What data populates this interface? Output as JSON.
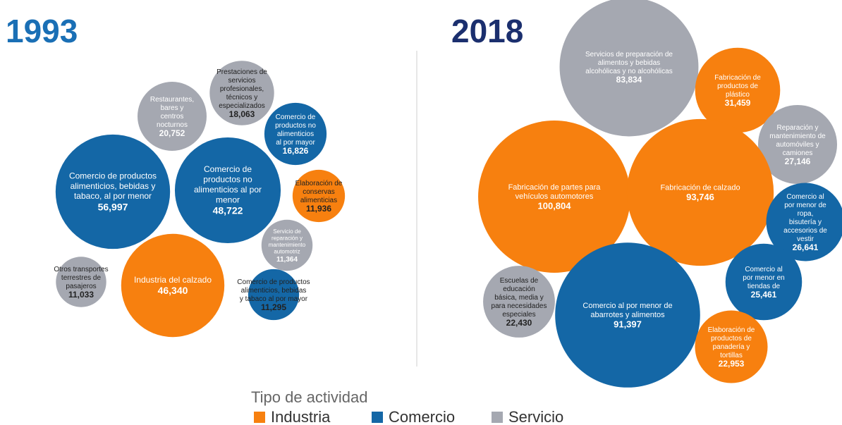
{
  "chart_data": [
    {
      "type": "packed_bubble",
      "title": "1993",
      "categories": [
        "Restaurantes, bares y centros nocturnos",
        "Prestaciones de servicios profesionales, técnicos y especializados",
        "Comercio de productos no alimenticios al por mayor",
        "Comercio de productos alimenticios, bebidas y tabaco, al por menor",
        "Comercio de productos no alimenticios al por menor",
        "Elaboración de conservas alimenticias",
        "Servicio de reparación y mantenimiento automotriz",
        "Otros transportes terrestres de pasajeros",
        "Industria del calzado",
        "Comercio de productos alimenticios, bebidas y tabaco al por mayor"
      ],
      "values": [
        20752,
        18063,
        16826,
        56997,
        48722,
        11936,
        11364,
        11033,
        46340,
        11295
      ],
      "value_labels": [
        "20,752",
        "18,063",
        "16,826",
        "56,997",
        "48,722",
        "11,936",
        "11,364",
        "11,033",
        "46,340",
        "11,295"
      ],
      "groups": [
        "Servicio",
        "Servicio",
        "Comercio",
        "Comercio",
        "Comercio",
        "Industria",
        "Servicio",
        "Servicio",
        "Industria",
        "Comercio"
      ]
    },
    {
      "type": "packed_bubble",
      "title": "2018",
      "categories": [
        "Servicios de preparación de alimentos y bebidas alcohólicas y no alcohólicas",
        "Fabricación de productos de plástico",
        "Reparación y mantenimiento de automóviles y camiones",
        "Fabricación de partes para vehículos automotores",
        "Fabricación de calzado",
        "Comercio al por menor de ropa, bisutería y accesorios de vestir",
        "Escuelas de educación básica, media y para necesidades especiales",
        "Comercio al por menor en tiendas de",
        "Comercio al por menor de abarrotes y alimentos",
        "Elaboración de productos de panadería y tortillas"
      ],
      "values": [
        83834,
        31459,
        27146,
        100804,
        93746,
        26641,
        22430,
        25461,
        91397,
        22953
      ],
      "value_labels": [
        "83,834",
        "31,459",
        "27,146",
        "100,804",
        "93,746",
        "26,641",
        "22,430",
        "25,461",
        "91,397",
        "22,953"
      ],
      "groups": [
        "Servicio",
        "Industria",
        "Servicio",
        "Industria",
        "Industria",
        "Comercio",
        "Servicio",
        "Comercio",
        "Comercio",
        "Industria"
      ]
    }
  ],
  "legend": {
    "title": "Tipo de actividad",
    "items": [
      {
        "name": "Industria",
        "color": "#f7800f"
      },
      {
        "name": "Comercio",
        "color": "#1467a6"
      },
      {
        "name": "Servicio",
        "color": "#a5a8b1"
      }
    ]
  }
}
